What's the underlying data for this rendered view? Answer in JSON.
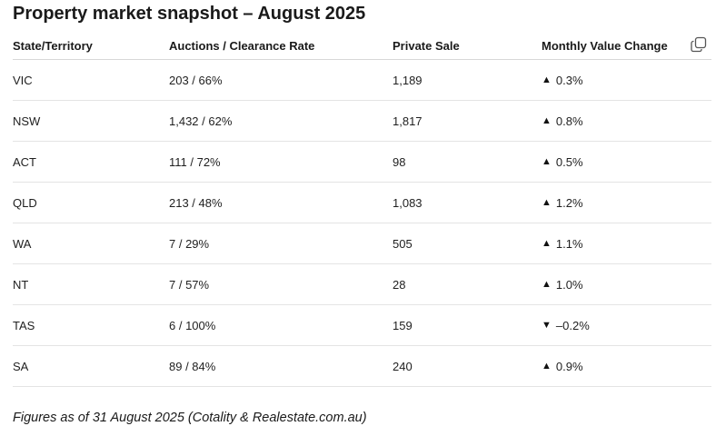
{
  "title": "Property market snapshot – August 2025",
  "table": {
    "headers": {
      "state": "State/Territory",
      "auctions": "Auctions / Clearance Rate",
      "private_sale": "Private Sale",
      "monthly_change": "Monthly Value Change"
    },
    "rows": [
      {
        "state": "VIC",
        "auctions": "203 / 66%",
        "private_sale": "1,189",
        "direction": "up",
        "arrow": "▲",
        "change": "0.3%"
      },
      {
        "state": "NSW",
        "auctions": "1,432 / 62%",
        "private_sale": "1,817",
        "direction": "up",
        "arrow": "▲",
        "change": "0.8%"
      },
      {
        "state": "ACT",
        "auctions": "111 / 72%",
        "private_sale": "98",
        "direction": "up",
        "arrow": "▲",
        "change": "0.5%"
      },
      {
        "state": "QLD",
        "auctions": "213 / 48%",
        "private_sale": "1,083",
        "direction": "up",
        "arrow": "▲",
        "change": "1.2%"
      },
      {
        "state": "WA",
        "auctions": "7 / 29%",
        "private_sale": "505",
        "direction": "up",
        "arrow": "▲",
        "change": "1.1%"
      },
      {
        "state": "NT",
        "auctions": "7 / 57%",
        "private_sale": "28",
        "direction": "up",
        "arrow": "▲",
        "change": "1.0%"
      },
      {
        "state": "TAS",
        "auctions": "6 / 100%",
        "private_sale": "159",
        "direction": "down",
        "arrow": "▼",
        "change": "–0.2%"
      },
      {
        "state": "SA",
        "auctions": "89 / 84%",
        "private_sale": "240",
        "direction": "up",
        "arrow": "▲",
        "change": "0.9%"
      }
    ]
  },
  "copy_button": {
    "icon": "copy-icon"
  },
  "footnote": "Figures as of 31 August 2025 (Cotality & Realestate.com.au)"
}
